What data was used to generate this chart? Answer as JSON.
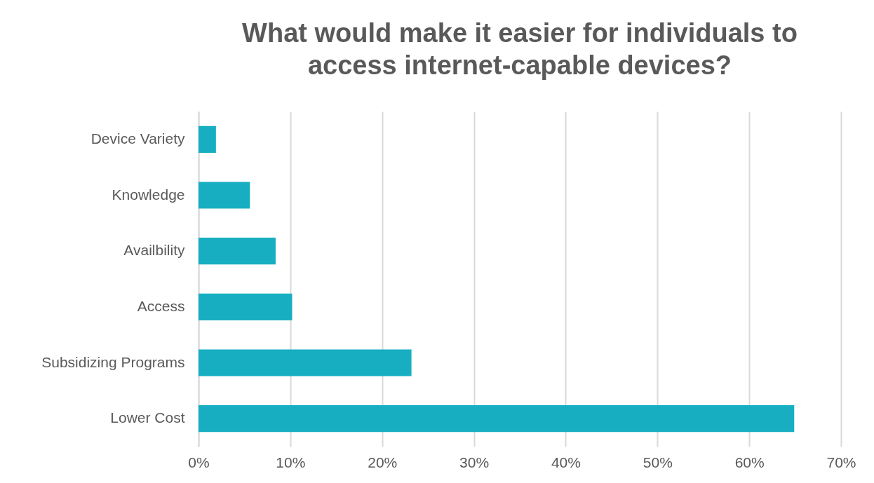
{
  "chart_data": {
    "type": "bar",
    "orientation": "horizontal",
    "title": "What would make it easier for individuals to\naccess internet-capable devices?",
    "categories": [
      "Device Variety",
      "Knowledge",
      "Availbility",
      "Access",
      "Subsidizing Programs",
      "Lower Cost"
    ],
    "values": [
      1.9,
      5.6,
      8.4,
      10.2,
      23.2,
      64.9
    ],
    "color": "#17aec2",
    "xlim": [
      0,
      70
    ],
    "xticks": [
      {
        "value": 0,
        "label": "0%"
      },
      {
        "value": 10,
        "label": "10%"
      },
      {
        "value": 20,
        "label": "20%"
      },
      {
        "value": 30,
        "label": "30%"
      },
      {
        "value": 40,
        "label": "40%"
      },
      {
        "value": 50,
        "label": "50%"
      },
      {
        "value": 60,
        "label": "60%"
      },
      {
        "value": 70,
        "label": "70%"
      }
    ],
    "grid": "x"
  }
}
